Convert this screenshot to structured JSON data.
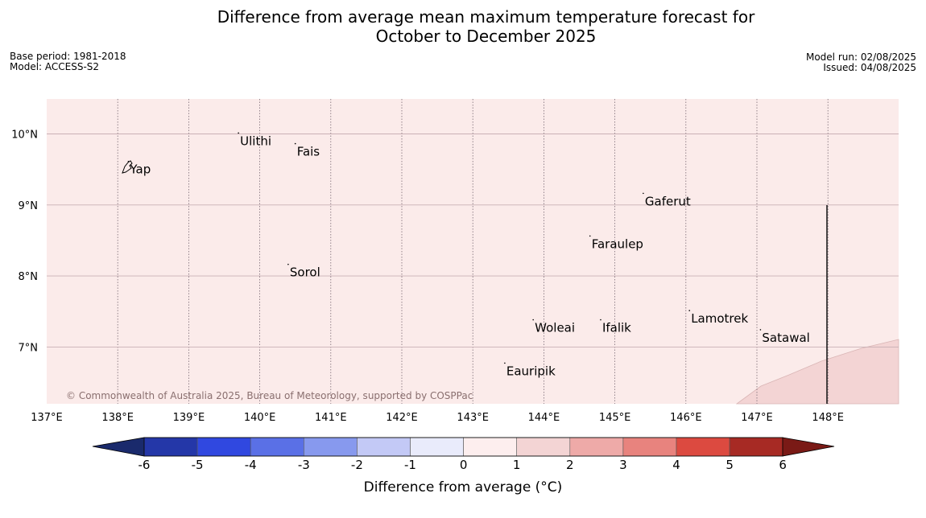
{
  "header": {
    "title_line1": "Difference from average mean maximum temperature forecast for",
    "title_line2": "October to December 2025",
    "base_period": "Base period: 1981-2018",
    "model": "Model: ACCESS-S2",
    "model_run": "Model run: 02/08/2025",
    "issued": "Issued: 04/08/2025"
  },
  "map": {
    "lon_range": [
      137,
      149
    ],
    "lat_range": [
      6.2,
      10.5
    ],
    "lon_ticks": [
      "137°E",
      "138°E",
      "139°E",
      "140°E",
      "141°E",
      "142°E",
      "143°E",
      "144°E",
      "145°E",
      "146°E",
      "147°E",
      "148°E"
    ],
    "lat_ticks": [
      "10°N",
      "9°N",
      "8°N",
      "7°N"
    ],
    "background_anomaly_color": "#fbebea",
    "warm_region_color": "#f3d4d4",
    "places": [
      {
        "name": "Yap",
        "lon": 138.15,
        "lat": 9.5
      },
      {
        "name": "Ulithi",
        "lon": 139.7,
        "lat": 9.9
      },
      {
        "name": "Fais",
        "lon": 140.5,
        "lat": 9.75
      },
      {
        "name": "Gaferut",
        "lon": 145.4,
        "lat": 9.05
      },
      {
        "name": "Faraulep",
        "lon": 144.65,
        "lat": 8.45
      },
      {
        "name": "Sorol",
        "lon": 140.4,
        "lat": 8.05
      },
      {
        "name": "Lamotrek",
        "lon": 146.05,
        "lat": 7.4
      },
      {
        "name": "Woleai",
        "lon": 143.85,
        "lat": 7.27
      },
      {
        "name": "Ifalik",
        "lon": 144.8,
        "lat": 7.27
      },
      {
        "name": "Satawal",
        "lon": 147.05,
        "lat": 7.13
      },
      {
        "name": "Eauripik",
        "lon": 143.45,
        "lat": 6.66
      }
    ]
  },
  "copyright": "© Commonwealth of Australia 2025, Bureau of Meteorology, supported by COSPPac",
  "colorbar": {
    "label": "Difference from average (°C)",
    "ticks": [
      "-6",
      "-5",
      "-4",
      "-3",
      "-2",
      "-1",
      "0",
      "1",
      "2",
      "3",
      "4",
      "5",
      "6"
    ],
    "low_extend_color": "#1a2a6c",
    "high_extend_color": "#7a1a16",
    "colors": [
      "#2437a8",
      "#3048e0",
      "#5a70e6",
      "#8799ee",
      "#c3c9f6",
      "#e9ebfb",
      "#fdeeee",
      "#f3d4d4",
      "#eeaaa8",
      "#e8837e",
      "#dc4a40",
      "#a72a24"
    ]
  }
}
